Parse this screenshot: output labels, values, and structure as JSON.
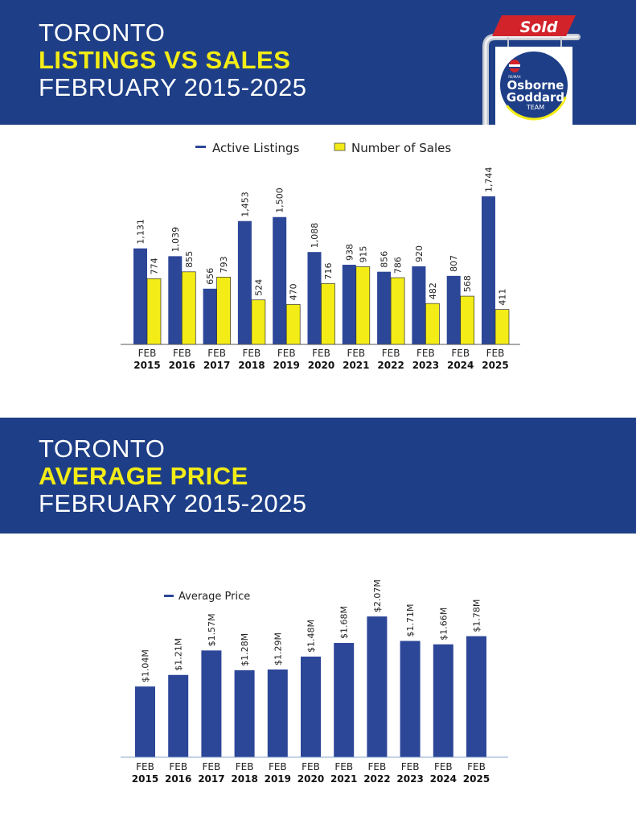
{
  "header1": {
    "line1": "TORONTO",
    "line2": "LISTINGS VS SALES",
    "line3": "FEBRUARY 2015-2025"
  },
  "header2": {
    "line1": "TORONTO",
    "line2": "AVERAGE PRICE",
    "line3": "FEBRUARY 2015-2025"
  },
  "logo": {
    "sold": "Sold",
    "brand": "RE/MAX",
    "name1": "Osborne",
    "name2": "Goddard",
    "team": "TEAM"
  },
  "colors": {
    "banner": "#1e3f87",
    "highlight": "#f3ec16",
    "bar_blue": "#2c4698",
    "bar_yellow": "#f3ec16",
    "sign_red": "#d2232a"
  },
  "chart_data": [
    {
      "type": "bar",
      "categories": [
        [
          "FEB",
          "2015"
        ],
        [
          "FEB",
          "2016"
        ],
        [
          "FEB",
          "2017"
        ],
        [
          "FEB",
          "2018"
        ],
        [
          "FEB",
          "2019"
        ],
        [
          "FEB",
          "2020"
        ],
        [
          "FEB",
          "2021"
        ],
        [
          "FEB",
          "2022"
        ],
        [
          "FEB",
          "2023"
        ],
        [
          "FEB",
          "2024"
        ],
        [
          "FEB",
          "2025"
        ]
      ],
      "series": [
        {
          "name": "Active Listings",
          "color": "#2c4698",
          "values": [
            1131,
            1039,
            656,
            1453,
            1500,
            1088,
            938,
            856,
            920,
            807,
            1744
          ],
          "labels": [
            "1,131",
            "1,039",
            "656",
            "1,453",
            "1,500",
            "1,088",
            "938",
            "856",
            "920",
            "807",
            "1,744"
          ]
        },
        {
          "name": "Number of Sales",
          "color": "#f3ec16",
          "values": [
            774,
            855,
            793,
            524,
            470,
            716,
            915,
            786,
            482,
            568,
            411
          ],
          "labels": [
            "774",
            "855",
            "793",
            "524",
            "470",
            "716",
            "915",
            "786",
            "482",
            "568",
            "411"
          ]
        }
      ],
      "legend_position": "top-center",
      "ylim": [
        0,
        1900
      ],
      "grid": false
    },
    {
      "type": "bar",
      "categories": [
        [
          "FEB",
          "2015"
        ],
        [
          "FEB",
          "2016"
        ],
        [
          "FEB",
          "2017"
        ],
        [
          "FEB",
          "2018"
        ],
        [
          "FEB",
          "2019"
        ],
        [
          "FEB",
          "2020"
        ],
        [
          "FEB",
          "2021"
        ],
        [
          "FEB",
          "2022"
        ],
        [
          "FEB",
          "2023"
        ],
        [
          "FEB",
          "2024"
        ],
        [
          "FEB",
          "2025"
        ]
      ],
      "series": [
        {
          "name": "Average Price",
          "color": "#2c4698",
          "values": [
            1.04,
            1.21,
            1.57,
            1.28,
            1.29,
            1.48,
            1.68,
            2.07,
            1.71,
            1.66,
            1.78
          ],
          "labels": [
            "$1.04M",
            "$1.21M",
            "$1.57M",
            "$1.28M",
            "$1.29M",
            "$1.48M",
            "$1.68M",
            "$2.07M",
            "$1.71M",
            "$1.66M",
            "$1.78M"
          ]
        }
      ],
      "unit": "$M",
      "legend_position": "top-left",
      "ylim": [
        0,
        2.3
      ],
      "grid": false
    }
  ]
}
